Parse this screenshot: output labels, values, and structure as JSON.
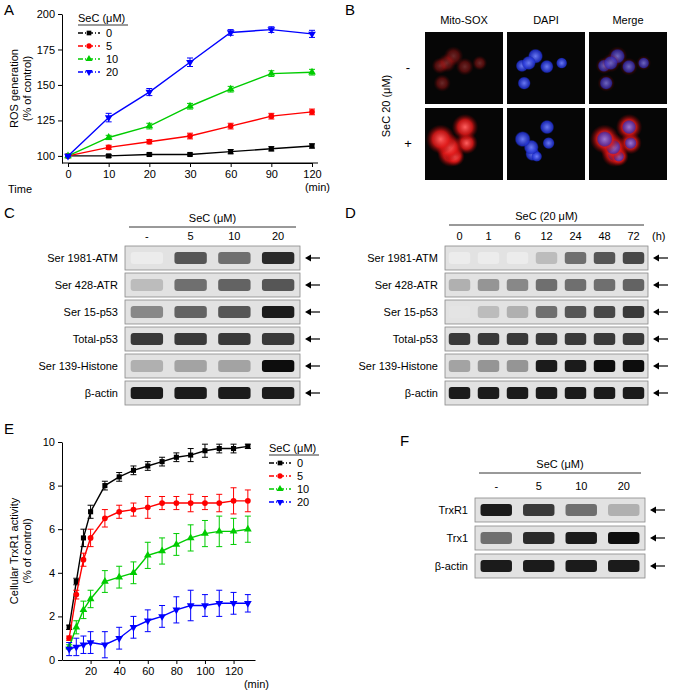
{
  "chart_data": [
    {
      "type": "line",
      "panel": "A",
      "y_label": [
        "ROS generation",
        "(% of control)"
      ],
      "x_label": "Time",
      "x_unit": "(min)",
      "categories": [
        0,
        10,
        20,
        30,
        60,
        90,
        120
      ],
      "ylim": [
        95,
        200
      ],
      "yticks": [
        100,
        125,
        150,
        175,
        200
      ],
      "grid": false,
      "legend": "upper-left",
      "legend_title": "SeC (μM)",
      "series": [
        {
          "name": "0",
          "color": "#000000",
          "marker": "square",
          "values": [
            100,
            100,
            101,
            101,
            103,
            105,
            107
          ],
          "errors": [
            0.5,
            1,
            1,
            1,
            1.5,
            1.5,
            1.5
          ]
        },
        {
          "name": "5",
          "color": "#ff0000",
          "marker": "circle",
          "values": [
            100,
            106,
            110,
            114,
            121,
            128,
            131
          ],
          "errors": [
            0.5,
            1.5,
            1.5,
            2,
            2,
            2,
            2
          ]
        },
        {
          "name": "10",
          "color": "#00cc00",
          "marker": "triangle-up",
          "values": [
            100,
            113,
            121,
            135,
            147,
            158,
            159
          ],
          "errors": [
            0.5,
            1.5,
            2,
            2,
            2,
            2,
            2
          ]
        },
        {
          "name": "20",
          "color": "#0000ff",
          "marker": "triangle-down",
          "values": [
            100,
            127,
            145,
            166,
            187,
            189,
            186
          ],
          "errors": [
            0.5,
            3,
            2.5,
            3,
            2,
            2,
            2.5
          ]
        }
      ]
    },
    {
      "type": "line",
      "panel": "E",
      "y_label": [
        "Cellular TrxR1 activity",
        "(% of control)"
      ],
      "x_unit": "(min)",
      "x": [
        5,
        10,
        15,
        20,
        30,
        40,
        50,
        60,
        70,
        80,
        90,
        100,
        110,
        120,
        130
      ],
      "xlim": [
        0,
        135
      ],
      "xticks": [
        20,
        40,
        60,
        80,
        100,
        120
      ],
      "ylim": [
        0,
        10
      ],
      "yticks": [
        0,
        2,
        4,
        6,
        8,
        10
      ],
      "grid": false,
      "legend": "right",
      "legend_title": "SeC (μM)",
      "series": [
        {
          "name": "0",
          "color": "#000000",
          "marker": "square",
          "values": [
            1.5,
            3.6,
            5.6,
            6.8,
            8.0,
            8.4,
            8.7,
            8.9,
            9.1,
            9.3,
            9.4,
            9.6,
            9.7,
            9.7,
            9.8
          ],
          "errors": [
            0.1,
            0.15,
            0.4,
            0.3,
            0.2,
            0.2,
            0.2,
            0.2,
            0.2,
            0.2,
            0.3,
            0.3,
            0.2,
            0.2,
            0.1
          ]
        },
        {
          "name": "5",
          "color": "#ff0000",
          "marker": "circle",
          "values": [
            1.0,
            3.0,
            4.6,
            5.6,
            6.5,
            6.8,
            6.9,
            7.0,
            7.2,
            7.2,
            7.2,
            7.2,
            7.2,
            7.3,
            7.3
          ],
          "errors": [
            0.1,
            0.2,
            0.3,
            0.4,
            0.4,
            0.3,
            0.3,
            0.5,
            0.3,
            0.3,
            0.4,
            0.3,
            0.4,
            0.6,
            0.5
          ]
        },
        {
          "name": "10",
          "color": "#00cc00",
          "marker": "triangle-up",
          "values": [
            0.6,
            1.5,
            2.3,
            2.8,
            3.6,
            3.8,
            4.0,
            4.8,
            5.0,
            5.3,
            5.6,
            5.8,
            5.9,
            5.9,
            6.0
          ],
          "errors": [
            0.1,
            0.3,
            0.4,
            0.4,
            0.5,
            0.5,
            0.5,
            0.6,
            0.6,
            0.5,
            0.6,
            0.6,
            0.7,
            0.6,
            0.6
          ]
        },
        {
          "name": "20",
          "color": "#0000ff",
          "marker": "triangle-down",
          "values": [
            0.5,
            0.6,
            0.7,
            0.8,
            0.7,
            1.0,
            1.5,
            1.8,
            2.0,
            2.3,
            2.5,
            2.5,
            2.6,
            2.6,
            2.6
          ],
          "errors": [
            0.3,
            0.4,
            0.4,
            0.5,
            0.6,
            0.5,
            0.5,
            0.5,
            0.5,
            0.6,
            0.7,
            0.5,
            0.6,
            0.5,
            0.4
          ]
        }
      ]
    }
  ],
  "microscopy": {
    "panel": "B",
    "columns": [
      "Mito-SOX",
      "DAPI",
      "Merge"
    ],
    "rows": [
      "-",
      "+"
    ],
    "row_title": "SeC 20 (μM)"
  },
  "blots": [
    {
      "panel": "C",
      "header": "SeC (μM)",
      "lanes": [
        "-",
        "5",
        "10",
        "20"
      ],
      "rows": [
        {
          "label": "Ser 1981-ATM",
          "intensity": [
            0.05,
            0.7,
            0.6,
            0.85
          ]
        },
        {
          "label": "Ser 428-ATR",
          "intensity": [
            0.3,
            0.6,
            0.65,
            0.7
          ]
        },
        {
          "label": "Ser 15-p53",
          "intensity": [
            0.5,
            0.65,
            0.7,
            0.9
          ]
        },
        {
          "label": "Total-p53",
          "intensity": [
            0.8,
            0.8,
            0.8,
            0.8
          ]
        },
        {
          "label": "Ser 139-Histone",
          "intensity": [
            0.35,
            0.4,
            0.4,
            0.95
          ]
        },
        {
          "label": "β-actin",
          "intensity": [
            0.9,
            0.9,
            0.9,
            0.9
          ]
        }
      ]
    },
    {
      "panel": "D",
      "header": "SeC (20 μM)",
      "lanes": [
        "0",
        "1",
        "6",
        "12",
        "24",
        "48",
        "72"
      ],
      "lane_unit": "(h)",
      "rows": [
        {
          "label": "Ser 1981-ATM",
          "intensity": [
            0.05,
            0.05,
            0.05,
            0.3,
            0.6,
            0.7,
            0.75
          ]
        },
        {
          "label": "Ser 428-ATR",
          "intensity": [
            0.35,
            0.45,
            0.5,
            0.6,
            0.6,
            0.6,
            0.65
          ]
        },
        {
          "label": "Ser 15-p53",
          "intensity": [
            0.1,
            0.3,
            0.35,
            0.6,
            0.7,
            0.75,
            0.8
          ]
        },
        {
          "label": "Total-p53",
          "intensity": [
            0.8,
            0.8,
            0.8,
            0.8,
            0.8,
            0.8,
            0.8
          ]
        },
        {
          "label": "Ser 139-Histone",
          "intensity": [
            0.4,
            0.45,
            0.45,
            0.9,
            0.9,
            0.95,
            0.95
          ]
        },
        {
          "label": "β-actin",
          "intensity": [
            0.9,
            0.9,
            0.9,
            0.9,
            0.9,
            0.9,
            0.9
          ]
        }
      ]
    },
    {
      "panel": "F",
      "header": "SeC (μM)",
      "lanes": [
        "-",
        "5",
        "10",
        "20"
      ],
      "rows": [
        {
          "label": "TrxR1",
          "intensity": [
            0.9,
            0.8,
            0.6,
            0.35
          ]
        },
        {
          "label": "Trx1",
          "intensity": [
            0.6,
            0.85,
            0.9,
            0.95
          ]
        },
        {
          "label": "β-actin",
          "intensity": [
            0.9,
            0.9,
            0.9,
            0.9
          ]
        }
      ]
    }
  ]
}
